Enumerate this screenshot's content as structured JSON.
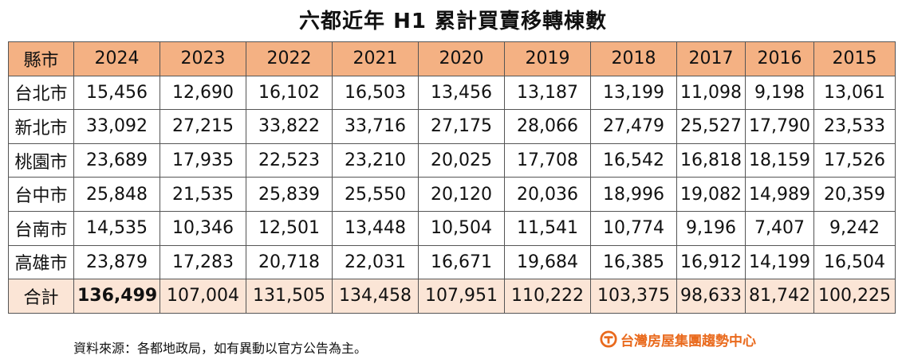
{
  "title": "六都近年 H1 累計買賣移轉棟數",
  "table": {
    "header": [
      "縣市",
      "2024",
      "2023",
      "2022",
      "2021",
      "2020",
      "2019",
      "2018",
      "2017",
      "2016",
      "2015"
    ],
    "rows": [
      [
        "台北市",
        "15,456",
        "12,690",
        "16,102",
        "16,503",
        "13,456",
        "13,187",
        "13,199",
        "11,098",
        "9,198",
        "13,061"
      ],
      [
        "新北市",
        "33,092",
        "27,215",
        "33,822",
        "33,716",
        "27,175",
        "28,066",
        "27,479",
        "25,527",
        "17,790",
        "23,533"
      ],
      [
        "桃園市",
        "23,689",
        "17,935",
        "22,523",
        "23,210",
        "20,025",
        "17,708",
        "16,542",
        "16,818",
        "18,159",
        "17,526"
      ],
      [
        "台中市",
        "25,848",
        "21,535",
        "25,839",
        "25,550",
        "20,120",
        "20,036",
        "18,996",
        "19,082",
        "14,989",
        "20,359"
      ],
      [
        "台南市",
        "14,535",
        "10,346",
        "12,501",
        "13,448",
        "10,504",
        "11,541",
        "10,774",
        "9,196",
        "7,407",
        "9,242"
      ],
      [
        "高雄市",
        "23,879",
        "17,283",
        "20,718",
        "22,031",
        "16,671",
        "19,684",
        "16,385",
        "16,912",
        "14,199",
        "16,504"
      ]
    ],
    "total": [
      "合計",
      "136,499",
      "107,004",
      "131,505",
      "134,458",
      "107,951",
      "110,222",
      "103,375",
      "98,633",
      "81,742",
      "100,225"
    ]
  },
  "source": "資料來源：各都地政局，如有異動以官方公告為主。",
  "logo": {
    "text": "台灣房屋集團趨勢中心",
    "color": "#e96a1d",
    "icon": "taiwan-realty-logo-icon"
  },
  "colors": {
    "header_bg": "#f4b183",
    "total_bg": "#fbe5d6"
  }
}
